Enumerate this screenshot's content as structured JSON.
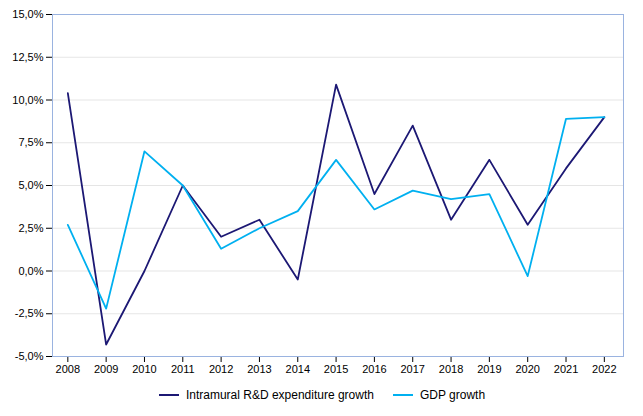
{
  "chart_data": {
    "type": "line",
    "x": [
      2008,
      2009,
      2010,
      2011,
      2012,
      2013,
      2014,
      2015,
      2016,
      2017,
      2018,
      2019,
      2020,
      2021,
      2022
    ],
    "series": [
      {
        "name": "Intramural R&D expenditure growth",
        "color": "#1c1874",
        "values": [
          0.104,
          -0.043,
          0.0,
          0.05,
          0.02,
          0.03,
          -0.005,
          0.109,
          0.045,
          0.085,
          0.03,
          0.065,
          0.027,
          0.06,
          0.09
        ]
      },
      {
        "name": "GDP growth",
        "color": "#00b0f0",
        "values": [
          0.027,
          -0.022,
          0.07,
          0.05,
          0.013,
          0.025,
          0.035,
          0.065,
          0.036,
          0.047,
          0.042,
          0.045,
          -0.003,
          0.089,
          0.09
        ]
      }
    ],
    "xlim": [
      2007.6,
      2022.5
    ],
    "xticks": [
      2008,
      2009,
      2010,
      2011,
      2012,
      2013,
      2014,
      2015,
      2016,
      2017,
      2018,
      2019,
      2020,
      2021,
      2022
    ],
    "ylim": [
      -0.05,
      0.15
    ],
    "yticks": [
      {
        "value": -0.05,
        "label": "-5,0%"
      },
      {
        "value": -0.025,
        "label": "-2,5%"
      },
      {
        "value": 0.0,
        "label": "0,0%"
      },
      {
        "value": 0.025,
        "label": "2,5%"
      },
      {
        "value": 0.05,
        "label": "5,0%"
      },
      {
        "value": 0.075,
        "label": "7,5%"
      },
      {
        "value": 0.1,
        "label": "10,0%"
      },
      {
        "value": 0.125,
        "label": "12,5%"
      },
      {
        "value": 0.15,
        "label": "15,0%"
      }
    ],
    "grid": true,
    "legend": "bottom"
  }
}
